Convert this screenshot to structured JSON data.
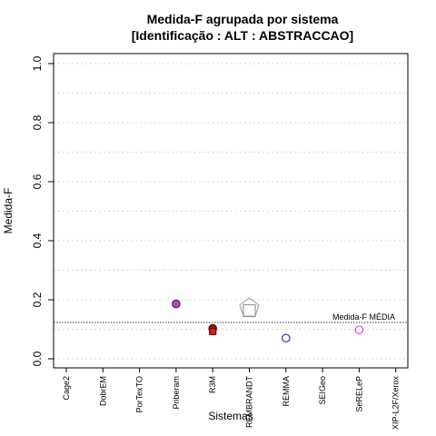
{
  "chart_data": {
    "type": "scatter",
    "title": "Medida-F agrupada por sistema",
    "subtitle": "[Identificação : ALT : ABSTRACCAO]",
    "xlabel": "Sistemas",
    "ylabel": "Medida-F",
    "ylim": [
      0,
      1
    ],
    "yticks": [
      "0.0",
      "0.2",
      "0.4",
      "0.6",
      "0.8",
      "1.0"
    ],
    "grid": "horizontal dotted",
    "categories": [
      "Cage2",
      "DobrEM",
      "PorTexTO",
      "Priberam",
      "R3M",
      "REMBRANDT",
      "REMMA",
      "SEIGeo",
      "SeRELeP",
      "XIP-L2F/Xerox"
    ],
    "points": [
      {
        "category": "Priberam",
        "value": 0.186,
        "marker": "circle",
        "fill": "#c040d0",
        "stroke": "#5a1a66"
      },
      {
        "category": "R3M",
        "value": 0.103,
        "marker": "circle",
        "fill": "#a01818",
        "stroke": "#4a0000"
      },
      {
        "category": "R3M",
        "value": 0.093,
        "marker": "square",
        "fill": "#cc2222",
        "stroke": "#7a0000"
      },
      {
        "category": "REMBRANDT",
        "value": 0.172,
        "marker": "pentagon",
        "fill": "none",
        "stroke": "#aaaaaa"
      },
      {
        "category": "REMBRANDT",
        "value": 0.163,
        "marker": "square",
        "fill": "none",
        "stroke": "#999999"
      },
      {
        "category": "REMMA",
        "value": 0.07,
        "marker": "circle",
        "fill": "none",
        "stroke": "#2233cc"
      },
      {
        "category": "SeRELeP",
        "value": 0.098,
        "marker": "circle",
        "fill": "none",
        "stroke": "#dd44ee"
      }
    ],
    "mean_line": {
      "value": 0.123,
      "label": "Medida-F MÉDIA"
    }
  }
}
